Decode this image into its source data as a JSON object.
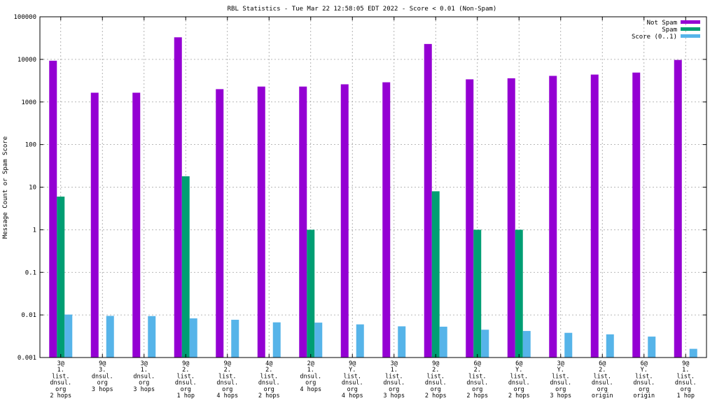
{
  "chart_data": {
    "type": "bar",
    "title": "RBL Statistics - Tue Mar 22 12:58:05 EDT 2022 - Score < 0.01 (Non-Spam)",
    "xlabel": "",
    "ylabel": "Message Count or Spam Score",
    "yscale": "log",
    "ylim": [
      0.001,
      100000
    ],
    "y_ticks": [
      0.001,
      0.01,
      0.1,
      1,
      10,
      100,
      1000,
      10000,
      100000
    ],
    "y_tick_labels": [
      "0.001",
      "0.01",
      "0.1",
      "1",
      "10",
      "100",
      "1000",
      "10000",
      "100000"
    ],
    "grid": true,
    "legend_position": "top-right",
    "categories": [
      [
        "3@",
        "1.",
        "list.",
        "dnsul.",
        "org",
        "2 hops"
      ],
      [
        "9@",
        "3.",
        "dnsul.",
        "org",
        "3 hops"
      ],
      [
        "3@",
        "1.",
        "dnsul.",
        "org",
        "3 hops"
      ],
      [
        "9@",
        "2.",
        "list.",
        "dnsul.",
        "org",
        "1 hop"
      ],
      [
        "9@",
        "2.",
        "list.",
        "dnsul.",
        "org",
        "4 hops"
      ],
      [
        "4@",
        "2.",
        "list.",
        "dnsul.",
        "org",
        "2 hops"
      ],
      [
        "2@",
        "1.",
        "dnsul.",
        "org",
        "4 hops"
      ],
      [
        "9@",
        "Y.",
        "list.",
        "dnsul.",
        "org",
        "4 hops"
      ],
      [
        "3@",
        "1.",
        "list.",
        "dnsul.",
        "org",
        "3 hops"
      ],
      [
        "9@",
        "2.",
        "list.",
        "dnsul.",
        "org",
        "2 hops"
      ],
      [
        "6@",
        "2.",
        "list.",
        "dnsul.",
        "org",
        "2 hops"
      ],
      [
        "6@",
        "Y.",
        "list.",
        "dnsul.",
        "org",
        "2 hops"
      ],
      [
        "3@",
        "Y.",
        "list.",
        "dnsul.",
        "org",
        "3 hops"
      ],
      [
        "6@",
        "2.",
        "list.",
        "dnsul.",
        "org",
        "origin"
      ],
      [
        "6@",
        "Y.",
        "list.",
        "dnsul.",
        "org",
        "origin"
      ],
      [
        "9@",
        "1.",
        "list.",
        "dnsul.",
        "org",
        "1 hop"
      ]
    ],
    "series": [
      {
        "name": "Not Spam",
        "color": "#9400d3",
        "values": [
          9300,
          1650,
          1650,
          33000,
          2000,
          2300,
          2300,
          2600,
          2900,
          23000,
          3400,
          3600,
          4100,
          4400,
          4900,
          9700
        ]
      },
      {
        "name": "Spam",
        "color": "#009e73",
        "values": [
          6,
          null,
          null,
          18,
          null,
          null,
          1,
          null,
          null,
          8,
          1,
          1,
          null,
          null,
          null,
          null
        ]
      },
      {
        "name": "Score (0..1)",
        "color": "#56b4e9",
        "values": [
          0.0102,
          0.0095,
          0.0094,
          0.0083,
          0.0077,
          0.0067,
          0.0066,
          0.006,
          0.0054,
          0.0053,
          0.0045,
          0.0042,
          0.0038,
          0.0035,
          0.0031,
          0.0016
        ]
      }
    ]
  }
}
